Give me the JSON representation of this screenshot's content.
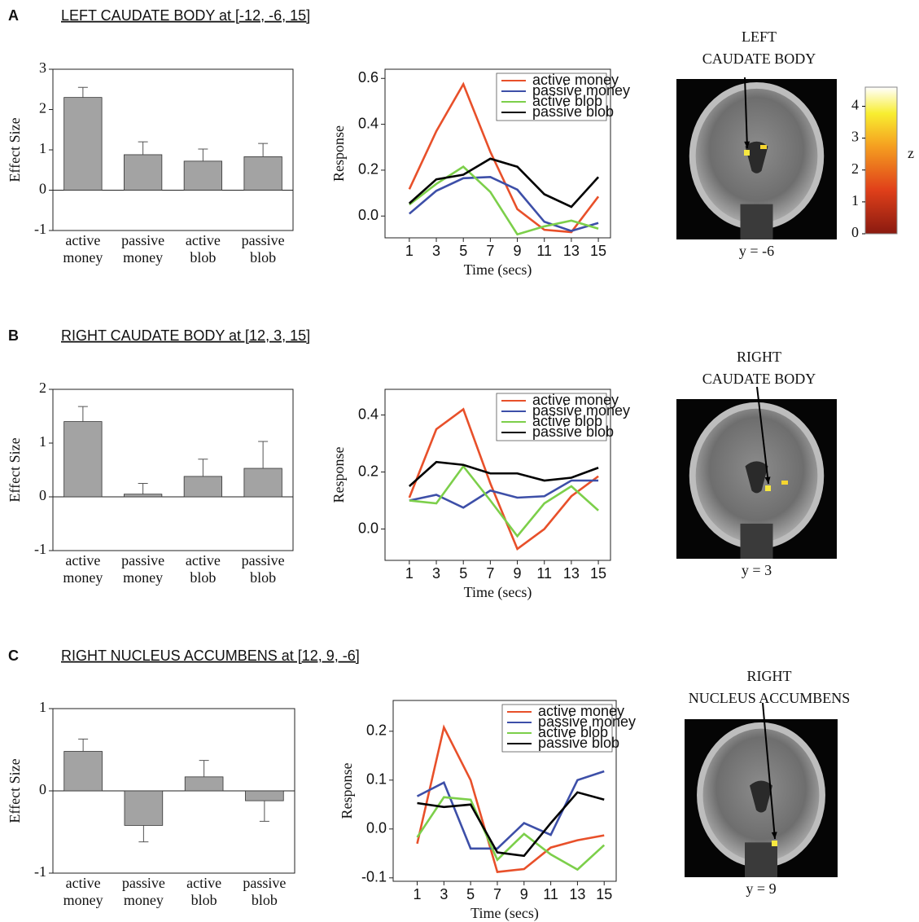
{
  "panels": [
    {
      "letter": "A",
      "title": "LEFT CAUDATE BODY at [-12, -6, 15]",
      "brain_label": [
        "LEFT",
        "CAUDATE BODY"
      ],
      "slice_label": "y = -6"
    },
    {
      "letter": "B",
      "title": "RIGHT CAUDATE BODY at [12, 3, 15]",
      "brain_label": [
        "RIGHT",
        "CAUDATE BODY"
      ],
      "slice_label": "y = 3"
    },
    {
      "letter": "C",
      "title": "RIGHT NUCLEUS ACCUMBENS at [12, 9, -6]",
      "brain_label": [
        "RIGHT",
        "NUCLEUS ACCUMBENS"
      ],
      "slice_label": "y = 9"
    }
  ],
  "colorbar": {
    "lim": [
      0,
      4.6
    ],
    "ticks": [
      0,
      1,
      2,
      3,
      4
    ],
    "label": "z"
  },
  "chart_data": [
    {
      "type": "bar",
      "ylabel": "Effect Size",
      "color": "#a3a3a3",
      "categories": [
        [
          "active",
          "money"
        ],
        [
          "passive",
          "money"
        ],
        [
          "active",
          "blob"
        ],
        [
          "passive",
          "blob"
        ]
      ],
      "values": [
        2.3,
        0.88,
        0.72,
        0.83
      ],
      "errors": [
        0.25,
        0.32,
        0.3,
        0.33
      ],
      "ylim": [
        -1,
        3
      ],
      "yticks": [
        -1,
        0,
        1,
        2,
        3
      ]
    },
    {
      "type": "line",
      "ylabel": "Response",
      "xlabel": "Time (secs)",
      "x": [
        1,
        3,
        5,
        7,
        9,
        11,
        13,
        15
      ],
      "xlim": [
        -0.8,
        15.9
      ],
      "xticks": [
        1,
        3,
        5,
        7,
        9,
        11,
        13,
        15
      ],
      "ylim": [
        -0.095,
        0.64
      ],
      "yticks": [
        {
          "value": 0,
          "label": "0.0"
        },
        0.2,
        0.4,
        0.6
      ],
      "series": [
        {
          "name": "active money",
          "color": "#e8502a",
          "values": [
            0.117,
            0.37,
            0.575,
            0.28,
            0.03,
            -0.06,
            -0.07,
            0.085
          ]
        },
        {
          "name": "passive money",
          "color": "#3d4fa8",
          "values": [
            0.01,
            0.11,
            0.165,
            0.17,
            0.115,
            -0.025,
            -0.065,
            -0.03
          ]
        },
        {
          "name": "active blob",
          "color": "#7ccf4a",
          "values": [
            0.05,
            0.14,
            0.215,
            0.105,
            -0.08,
            -0.045,
            -0.02,
            -0.055
          ]
        },
        {
          "name": "passive blob",
          "color": "#000000",
          "values": [
            0.055,
            0.16,
            0.18,
            0.25,
            0.215,
            0.095,
            0.04,
            0.17
          ]
        }
      ]
    },
    {
      "type": "bar",
      "ylabel": "Effect Size",
      "color": "#a3a3a3",
      "categories": [
        [
          "active",
          "money"
        ],
        [
          "passive",
          "money"
        ],
        [
          "active",
          "blob"
        ],
        [
          "passive",
          "blob"
        ]
      ],
      "values": [
        1.4,
        0.05,
        0.38,
        0.53
      ],
      "errors": [
        0.28,
        0.2,
        0.32,
        0.5
      ],
      "ylim": [
        -1,
        2
      ],
      "yticks": [
        -1,
        0,
        1,
        2
      ]
    },
    {
      "type": "line",
      "ylabel": "Response",
      "xlabel": "Time (secs)",
      "x": [
        1,
        3,
        5,
        7,
        9,
        11,
        13,
        15
      ],
      "xlim": [
        -0.8,
        15.9
      ],
      "xticks": [
        1,
        3,
        5,
        7,
        9,
        11,
        13,
        15
      ],
      "ylim": [
        -0.11,
        0.49
      ],
      "yticks": [
        {
          "value": 0,
          "label": "0.0"
        },
        0.2,
        0.4
      ],
      "series": [
        {
          "name": "active money",
          "color": "#e8502a",
          "values": [
            0.11,
            0.35,
            0.42,
            0.16,
            -0.07,
            0.0,
            0.115,
            0.185
          ]
        },
        {
          "name": "passive money",
          "color": "#3d4fa8",
          "values": [
            0.1,
            0.12,
            0.075,
            0.135,
            0.11,
            0.115,
            0.17,
            0.17
          ]
        },
        {
          "name": "active blob",
          "color": "#7ccf4a",
          "values": [
            0.1,
            0.09,
            0.22,
            0.1,
            -0.025,
            0.09,
            0.15,
            0.065
          ]
        },
        {
          "name": "passive blob",
          "color": "#000000",
          "values": [
            0.15,
            0.235,
            0.225,
            0.195,
            0.195,
            0.17,
            0.18,
            0.215
          ]
        }
      ]
    },
    {
      "type": "bar",
      "ylabel": "Effect Size",
      "color": "#a3a3a3",
      "categories": [
        [
          "active",
          "money"
        ],
        [
          "passive",
          "money"
        ],
        [
          "active",
          "blob"
        ],
        [
          "passive",
          "blob"
        ]
      ],
      "values": [
        0.48,
        -0.42,
        0.17,
        -0.12
      ],
      "errors": [
        0.15,
        0.2,
        0.2,
        0.25
      ],
      "ylim": [
        -1,
        1
      ],
      "yticks": [
        -1,
        0,
        1
      ]
    },
    {
      "type": "line",
      "ylabel": "Response",
      "xlabel": "Time (secs)",
      "x": [
        1,
        3,
        5,
        7,
        9,
        11,
        13,
        15
      ],
      "xlim": [
        -0.8,
        15.9
      ],
      "xticks": [
        1,
        3,
        5,
        7,
        9,
        11,
        13,
        15
      ],
      "ylim": [
        -0.107,
        0.263
      ],
      "yticks": [
        -0.1,
        {
          "value": 0,
          "label": "0.0"
        },
        0.1,
        0.2
      ],
      "series": [
        {
          "name": "active money",
          "color": "#e8502a",
          "values": [
            -0.03,
            0.208,
            0.1,
            -0.088,
            -0.082,
            -0.038,
            -0.023,
            -0.013
          ]
        },
        {
          "name": "passive money",
          "color": "#3d4fa8",
          "values": [
            0.067,
            0.095,
            -0.04,
            -0.04,
            0.012,
            -0.012,
            0.1,
            0.118
          ]
        },
        {
          "name": "active blob",
          "color": "#7ccf4a",
          "values": [
            -0.017,
            0.065,
            0.06,
            -0.063,
            -0.01,
            -0.052,
            -0.083,
            -0.033
          ]
        },
        {
          "name": "passive blob",
          "color": "#000000",
          "values": [
            0.053,
            0.045,
            0.05,
            -0.048,
            -0.055,
            0.012,
            0.075,
            0.06
          ]
        }
      ]
    }
  ]
}
